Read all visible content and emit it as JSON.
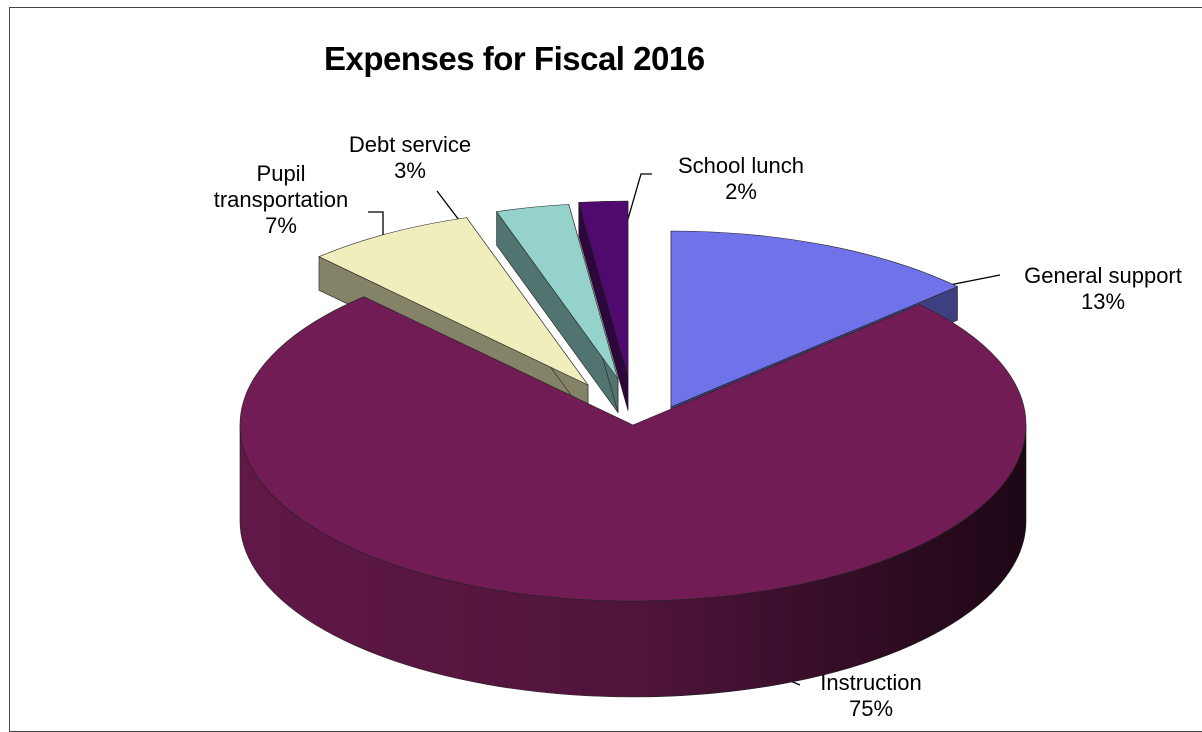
{
  "chart_data": {
    "type": "pie",
    "title": "Expenses for Fiscal 2016",
    "slices": [
      {
        "label": "General support",
        "percent_label": "13%",
        "value": 13,
        "color": "#6f72e8",
        "explode": true
      },
      {
        "label": "Instruction",
        "percent_label": "75%",
        "value": 75,
        "color": "#721c55",
        "explode": false
      },
      {
        "label": "Pupil transportation",
        "percent_label": "7%",
        "value": 7,
        "color": "#f0eebc",
        "explode": true
      },
      {
        "label": "Debt service",
        "percent_label": "3%",
        "value": 3,
        "color": "#95d2cc",
        "explode": true
      },
      {
        "label": "School lunch",
        "percent_label": "2%",
        "value": 2,
        "color": "#500a6f",
        "explode": true
      }
    ],
    "legend": "none",
    "style": "3d-exploded"
  }
}
